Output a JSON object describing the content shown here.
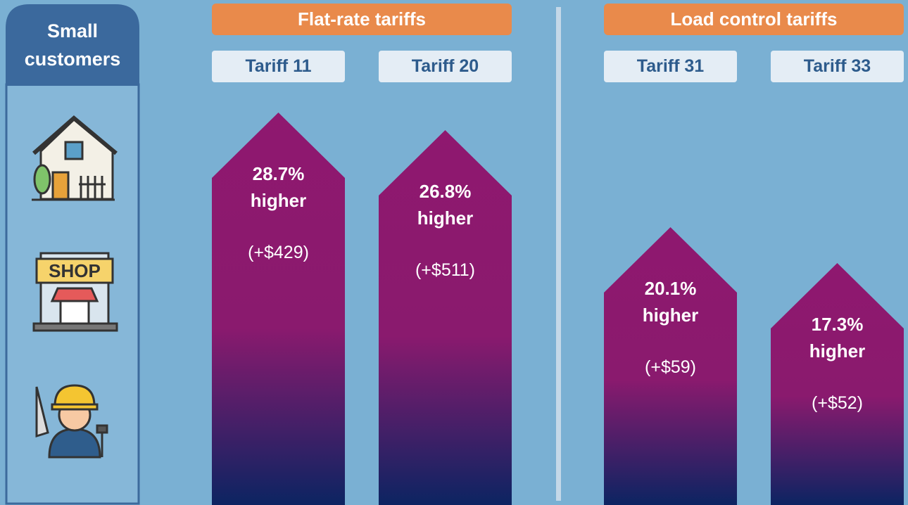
{
  "panel": {
    "title": "Small customers"
  },
  "groups": [
    {
      "title": "Flat-rate tariffs",
      "tariffs": [
        {
          "name": "Tariff 11",
          "change": "28.7%",
          "direction": "higher",
          "amount": "(+$429)"
        },
        {
          "name": "Tariff 20",
          "change": "26.8%",
          "direction": "higher",
          "amount": "(+$511)"
        }
      ]
    },
    {
      "title": "Load control tariffs",
      "tariffs": [
        {
          "name": "Tariff 31",
          "change": "20.1%",
          "direction": "higher",
          "amount": "(+$59)"
        },
        {
          "name": "Tariff 33",
          "change": "17.3%",
          "direction": "higher",
          "amount": "(+$52)"
        }
      ]
    }
  ]
}
